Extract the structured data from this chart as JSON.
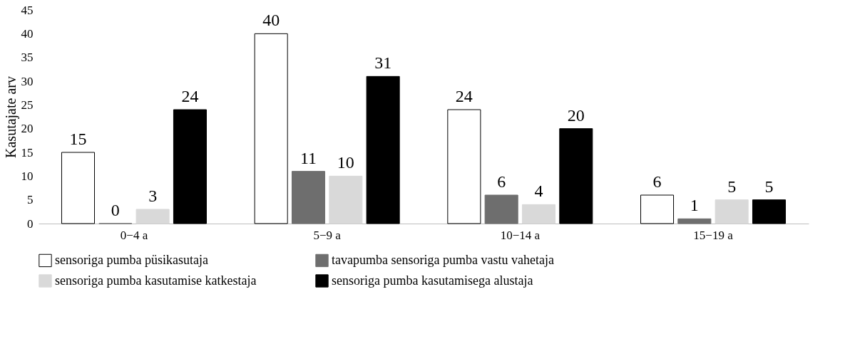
{
  "chart_data": {
    "type": "bar",
    "ylabel": "Kasutajate arv",
    "categories": [
      "0−4 a",
      "5−9 a",
      "10−14 a",
      "15−19 a"
    ],
    "series": [
      {
        "name": "sensoriga pumba püsikasutaja",
        "color": "#ffffff",
        "values": [
          15,
          40,
          24,
          6
        ]
      },
      {
        "name": "tavapumba sensoriga pumba vastu vahetaja",
        "color": "#6e6e6e",
        "values": [
          0,
          11,
          6,
          1
        ]
      },
      {
        "name": "sensoriga pumba kasutamise katkestaja",
        "color": "#d9d9d9",
        "values": [
          3,
          10,
          4,
          5
        ]
      },
      {
        "name": "sensoriga pumba kasutamisega alustaja",
        "color": "#000000",
        "values": [
          24,
          31,
          20,
          5
        ]
      }
    ],
    "ylim": [
      0,
      45
    ],
    "yticks": [
      0,
      5,
      10,
      15,
      20,
      25,
      30,
      35,
      40,
      45
    ],
    "grid": false,
    "legend": "bottom",
    "data_labels": true
  }
}
